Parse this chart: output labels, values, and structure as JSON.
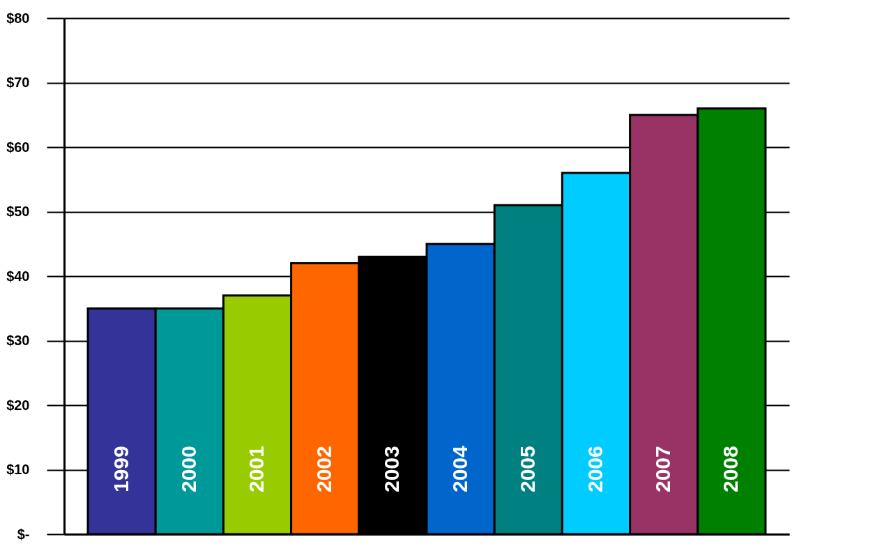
{
  "chart_data": {
    "type": "bar",
    "categories": [
      "1999",
      "2000",
      "2001",
      "2002",
      "2003",
      "2004",
      "2005",
      "2006",
      "2007",
      "2008"
    ],
    "values": [
      35,
      35,
      37,
      42,
      43,
      45,
      51,
      56,
      65,
      66
    ],
    "colors": [
      "#333399",
      "#009999",
      "#99cc00",
      "#ff6600",
      "#000000",
      "#0066cc",
      "#008080",
      "#00ccff",
      "#993366",
      "#008000"
    ],
    "ylim": [
      0,
      80
    ],
    "yticks": [
      {
        "value": 0,
        "label": "$-"
      },
      {
        "value": 10,
        "label": "$10"
      },
      {
        "value": 20,
        "label": "$20"
      },
      {
        "value": 30,
        "label": "$30"
      },
      {
        "value": 40,
        "label": "$40"
      },
      {
        "value": 50,
        "label": "$50"
      },
      {
        "value": 60,
        "label": "$60"
      },
      {
        "value": 70,
        "label": "$70"
      },
      {
        "value": 80,
        "label": "$80"
      }
    ],
    "grid": "y",
    "tick_labels": "y"
  }
}
